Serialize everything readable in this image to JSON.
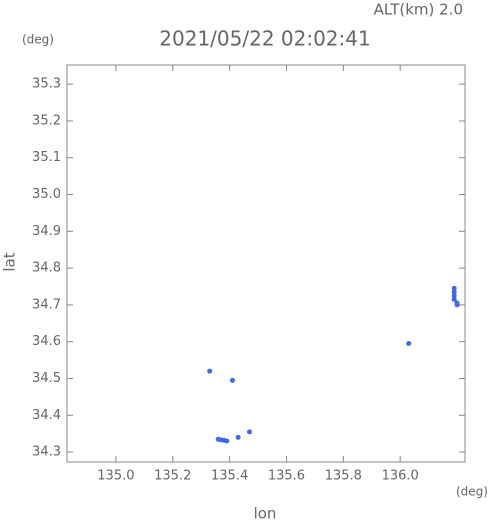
{
  "chart_data": {
    "type": "scatter",
    "subtitle": "ALT(km) 2.0",
    "title": "2021/05/22 02:02:41",
    "y_unit": "(deg)",
    "y_label": "lat",
    "x_label": "lon",
    "x_unit": "(deg)",
    "color": "#4169e1",
    "x": [
      135.33,
      135.41,
      135.36,
      135.37,
      135.38,
      135.39,
      135.43,
      135.47,
      136.03,
      136.19,
      136.19,
      136.19,
      136.19,
      136.2,
      136.2
    ],
    "y": [
      34.52,
      34.495,
      34.335,
      34.333,
      34.332,
      34.33,
      34.34,
      34.355,
      34.595,
      34.745,
      34.735,
      34.725,
      34.715,
      34.705,
      34.7
    ],
    "xlim": [
      134.828,
      136.228
    ],
    "ylim": [
      34.273,
      35.352
    ],
    "xticks": [
      {
        "value": 135,
        "label": "135.0"
      },
      135.2,
      135.4,
      135.6,
      135.8,
      {
        "value": 136,
        "label": "136.0"
      }
    ],
    "yticks": [
      34.3,
      34.4,
      34.5,
      34.6,
      34.7,
      34.8,
      34.9,
      {
        "value": 35,
        "label": "35.0"
      },
      35.1,
      35.2,
      35.3
    ]
  }
}
